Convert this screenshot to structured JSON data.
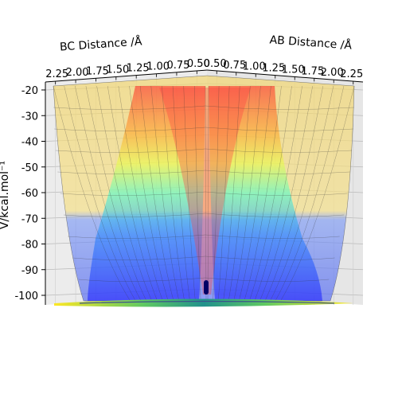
{
  "chart_data": {
    "type": "surface3d",
    "title": "",
    "axes": {
      "bc": {
        "label": "BC Distance /Å",
        "ticks": [
          "2.25",
          "2.00",
          "1.75",
          "1.50",
          "1.25",
          "1.00",
          "0.75",
          "0.50"
        ]
      },
      "ab": {
        "label": "AB Distance /Å",
        "ticks": [
          "0.50",
          "0.75",
          "1.00",
          "1.25",
          "1.50",
          "1.75",
          "2.00",
          "2.25"
        ]
      },
      "z": {
        "label": "V/kcal.mol⁻¹",
        "ticks": [
          "-20",
          "-30",
          "-40",
          "-50",
          "-60",
          "-70",
          "-80",
          "-90",
          "-100"
        ],
        "range": [
          -105,
          -18
        ]
      }
    },
    "colormap": "jet",
    "contour_colormap": "viridis",
    "colors": {
      "low": "#1f1fff",
      "mid": "#00ffcc",
      "high": "#ff2200",
      "plateau": "#f5e08a",
      "trajectory": "#000066"
    }
  }
}
